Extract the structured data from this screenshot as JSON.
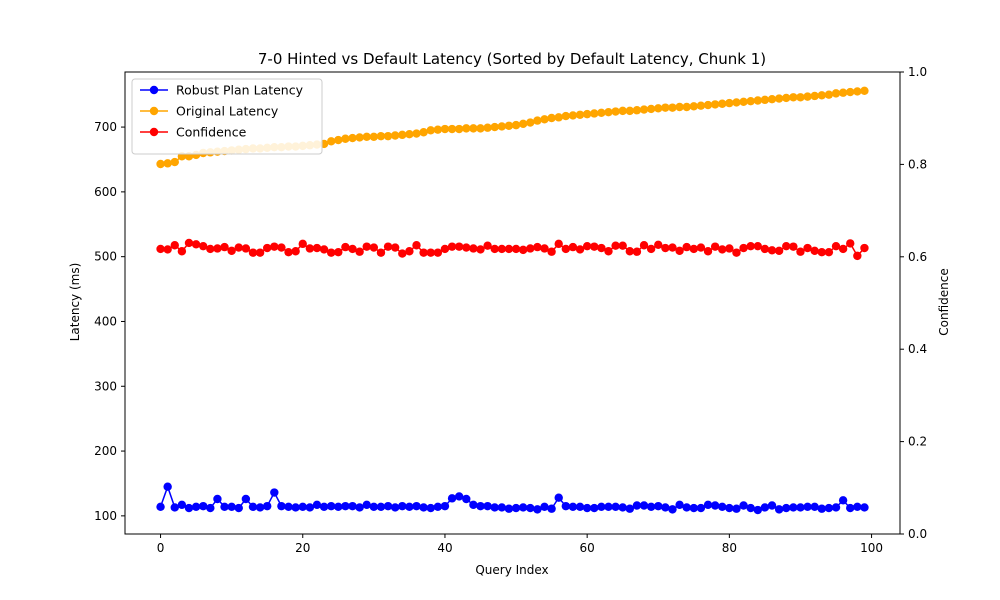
{
  "chart_data": {
    "type": "line",
    "title": "7-0 Hinted vs Default Latency (Sorted by Default Latency, Chunk 1)",
    "xlabel": "Query Index",
    "ylabel": "Latency (ms)",
    "y2label": "Confidence",
    "xlim": [
      -5,
      104
    ],
    "ylim": [
      72,
      785
    ],
    "y2lim": [
      0,
      1
    ],
    "xticks": [
      0,
      20,
      40,
      60,
      80,
      100
    ],
    "yticks": [
      100,
      200,
      300,
      400,
      500,
      600,
      700
    ],
    "y2ticks": [
      0.0,
      0.2,
      0.4,
      0.6,
      0.8,
      1.0
    ],
    "y2tick_labels": [
      "0.0",
      "0.2",
      "0.4",
      "0.6",
      "0.8",
      "1.0"
    ],
    "legend_position": "upper-left",
    "grid": false,
    "series": [
      {
        "name": "Robust Plan Latency",
        "axis": "left",
        "color": "#0000ff",
        "values": [
          114,
          145,
          113,
          117,
          112,
          114,
          115,
          112,
          126,
          114,
          114,
          112,
          126,
          114,
          113,
          115,
          136,
          115,
          114,
          113,
          114,
          113,
          117,
          114,
          115,
          114,
          115,
          115,
          113,
          117,
          114,
          114,
          115,
          113,
          115,
          114,
          115,
          113,
          112,
          114,
          115,
          127,
          130,
          126,
          117,
          115,
          115,
          113,
          113,
          111,
          112,
          113,
          112,
          110,
          114,
          111,
          128,
          115,
          114,
          114,
          112,
          112,
          114,
          114,
          114,
          113,
          111,
          116,
          116,
          114,
          115,
          113,
          110,
          117,
          113,
          112,
          112,
          117,
          116,
          114,
          112,
          111,
          116,
          112,
          109,
          113,
          116,
          110,
          112,
          113,
          113,
          114,
          114,
          111,
          112,
          113,
          124,
          112,
          114,
          113
        ]
      },
      {
        "name": "Original Latency",
        "axis": "left",
        "color": "#ffa500",
        "values": [
          643,
          644,
          646,
          655,
          655,
          657,
          660,
          661,
          662,
          663,
          664,
          665,
          666,
          667,
          667,
          668,
          669,
          669,
          670,
          670,
          671,
          672,
          673,
          674,
          678,
          680,
          682,
          683,
          684,
          685,
          685,
          686,
          686,
          687,
          688,
          689,
          690,
          692,
          695,
          696,
          697,
          697,
          697,
          698,
          698,
          698,
          699,
          700,
          701,
          702,
          703,
          705,
          707,
          710,
          712,
          714,
          715,
          717,
          718,
          719,
          720,
          721,
          722,
          723,
          724,
          725,
          725,
          726,
          727,
          728,
          729,
          730,
          730,
          731,
          731,
          732,
          733,
          734,
          735,
          736,
          737,
          738,
          739,
          740,
          741,
          742,
          743,
          744,
          745,
          746,
          746,
          747,
          748,
          749,
          750,
          752,
          753,
          754,
          755,
          756
        ]
      },
      {
        "name": "Confidence",
        "axis": "right",
        "color": "#ff0000",
        "values": [
          0.617,
          0.616,
          0.625,
          0.612,
          0.63,
          0.627,
          0.623,
          0.617,
          0.618,
          0.621,
          0.613,
          0.62,
          0.618,
          0.609,
          0.609,
          0.619,
          0.622,
          0.62,
          0.61,
          0.612,
          0.628,
          0.618,
          0.619,
          0.616,
          0.609,
          0.61,
          0.621,
          0.617,
          0.611,
          0.622,
          0.62,
          0.609,
          0.622,
          0.62,
          0.607,
          0.612,
          0.625,
          0.609,
          0.609,
          0.609,
          0.617,
          0.622,
          0.622,
          0.62,
          0.618,
          0.616,
          0.624,
          0.617,
          0.617,
          0.617,
          0.617,
          0.615,
          0.618,
          0.621,
          0.618,
          0.611,
          0.628,
          0.617,
          0.621,
          0.616,
          0.623,
          0.622,
          0.619,
          0.612,
          0.624,
          0.624,
          0.612,
          0.611,
          0.625,
          0.617,
          0.626,
          0.619,
          0.62,
          0.613,
          0.621,
          0.617,
          0.62,
          0.612,
          0.622,
          0.616,
          0.618,
          0.609,
          0.619,
          0.623,
          0.623,
          0.617,
          0.614,
          0.613,
          0.623,
          0.622,
          0.611,
          0.619,
          0.613,
          0.61,
          0.61,
          0.623,
          0.617,
          0.629,
          0.602,
          0.619
        ]
      }
    ]
  }
}
